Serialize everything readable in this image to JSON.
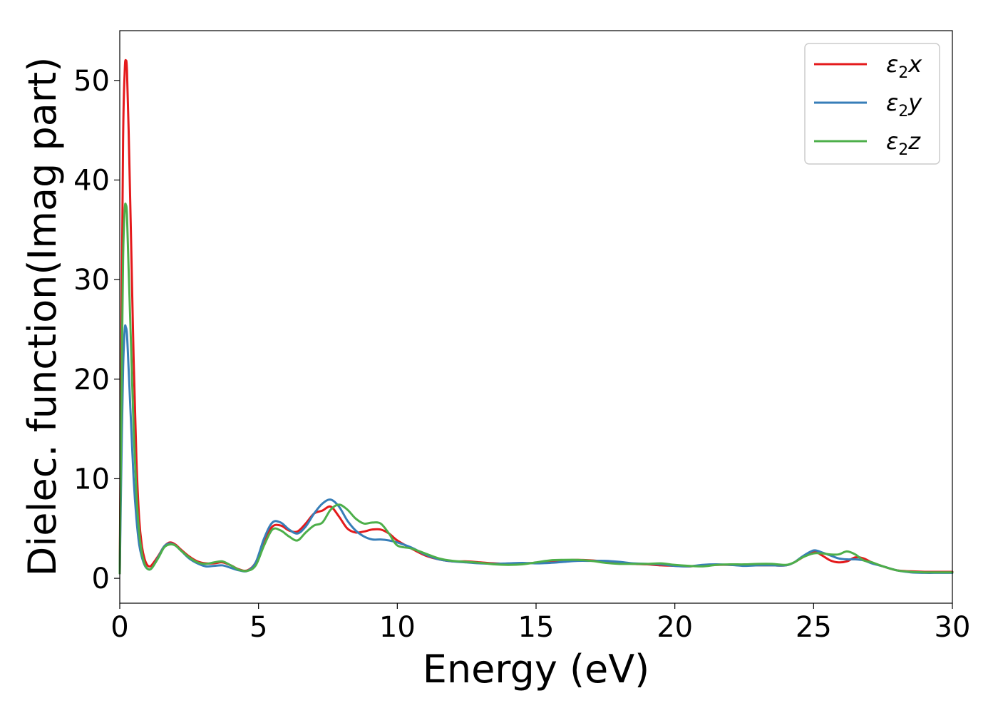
{
  "chart_data": {
    "type": "line",
    "title": "",
    "xlabel": "Energy (eV)",
    "ylabel": "Dielec. function(Imag part)",
    "xlim": [
      0,
      30
    ],
    "ylim": [
      -2.5,
      55
    ],
    "xticks": [
      0,
      5,
      10,
      15,
      20,
      25,
      30
    ],
    "yticks": [
      0,
      10,
      20,
      30,
      40,
      50
    ],
    "grid": false,
    "legend_position": "top-right",
    "series": [
      {
        "name": "ε2x",
        "legend_base": "ε",
        "legend_sub": "2",
        "legend_var": "x",
        "color": "#e41a1c",
        "x": [
          0,
          0.05,
          0.12,
          0.18,
          0.22,
          0.26,
          0.32,
          0.4,
          0.5,
          0.6,
          0.7,
          0.8,
          0.9,
          1.0,
          1.1,
          1.2,
          1.4,
          1.6,
          1.8,
          2.0,
          2.2,
          2.5,
          2.8,
          3.1,
          3.4,
          3.7,
          4.0,
          4.3,
          4.6,
          4.9,
          5.2,
          5.5,
          5.8,
          6.1,
          6.4,
          6.7,
          7.0,
          7.3,
          7.6,
          7.9,
          8.2,
          8.5,
          8.8,
          9.1,
          9.4,
          9.7,
          10.0,
          10.5,
          11,
          11.5,
          12,
          12.5,
          13,
          13.5,
          14,
          14.5,
          15,
          15.5,
          16,
          16.5,
          17,
          17.5,
          18,
          18.5,
          19,
          19.5,
          20,
          20.5,
          21,
          21.5,
          22,
          22.5,
          23,
          23.5,
          24,
          24.3,
          24.6,
          25.0,
          25.3,
          25.6,
          25.9,
          26.2,
          26.5,
          26.8,
          27.1,
          27.5,
          28,
          28.5,
          29,
          29.5,
          30
        ],
        "y": [
          0.5,
          20,
          44,
          51,
          52,
          51,
          45,
          35,
          22,
          12,
          6,
          3.2,
          1.9,
          1.3,
          1.2,
          1.5,
          2.3,
          3.2,
          3.6,
          3.4,
          2.9,
          2.2,
          1.7,
          1.5,
          1.5,
          1.6,
          1.3,
          0.9,
          0.8,
          1.6,
          3.8,
          5.2,
          5.3,
          4.8,
          4.7,
          5.5,
          6.5,
          6.8,
          7.2,
          6.2,
          5.0,
          4.6,
          4.7,
          4.9,
          4.9,
          4.5,
          3.8,
          3.0,
          2.3,
          1.9,
          1.7,
          1.7,
          1.6,
          1.5,
          1.45,
          1.5,
          1.55,
          1.7,
          1.8,
          1.85,
          1.8,
          1.7,
          1.6,
          1.45,
          1.4,
          1.3,
          1.25,
          1.2,
          1.3,
          1.35,
          1.35,
          1.3,
          1.3,
          1.3,
          1.3,
          1.6,
          2.1,
          2.7,
          2.3,
          1.8,
          1.6,
          1.7,
          2.1,
          2.0,
          1.6,
          1.2,
          0.8,
          0.7,
          0.65,
          0.65,
          0.65
        ]
      },
      {
        "name": "ε2y",
        "legend_base": "ε",
        "legend_sub": "2",
        "legend_var": "y",
        "color": "#377eb8",
        "x": [
          0,
          0.05,
          0.12,
          0.18,
          0.22,
          0.26,
          0.32,
          0.4,
          0.5,
          0.6,
          0.7,
          0.8,
          0.9,
          1.0,
          1.1,
          1.2,
          1.4,
          1.6,
          1.8,
          2.0,
          2.2,
          2.5,
          2.8,
          3.1,
          3.4,
          3.7,
          4.0,
          4.3,
          4.6,
          4.9,
          5.2,
          5.5,
          5.8,
          6.1,
          6.4,
          6.7,
          7.0,
          7.3,
          7.6,
          7.9,
          8.2,
          8.5,
          8.8,
          9.1,
          9.4,
          9.7,
          10.0,
          10.5,
          11,
          11.5,
          12,
          12.5,
          13,
          13.5,
          14,
          14.5,
          15,
          15.5,
          16,
          16.5,
          17,
          17.5,
          18,
          18.5,
          19,
          19.5,
          20,
          20.5,
          21,
          21.5,
          22,
          22.5,
          23,
          23.5,
          24,
          24.3,
          24.6,
          25.0,
          25.3,
          25.6,
          25.9,
          26.2,
          26.5,
          26.8,
          27.1,
          27.5,
          28,
          28.5,
          29,
          29.5,
          30
        ],
        "y": [
          0.5,
          10,
          21,
          25,
          25.2,
          24.5,
          21,
          16,
          10,
          6,
          3.4,
          2.1,
          1.3,
          0.95,
          0.9,
          1.2,
          2.2,
          3.2,
          3.5,
          3.3,
          2.8,
          2.0,
          1.5,
          1.2,
          1.25,
          1.3,
          1.05,
          0.8,
          0.75,
          1.6,
          4.0,
          5.6,
          5.6,
          4.9,
          4.5,
          5.2,
          6.5,
          7.5,
          7.9,
          7.2,
          5.8,
          4.8,
          4.2,
          3.9,
          3.9,
          3.8,
          3.6,
          3.1,
          2.4,
          1.9,
          1.7,
          1.6,
          1.5,
          1.45,
          1.5,
          1.55,
          1.5,
          1.55,
          1.65,
          1.75,
          1.75,
          1.75,
          1.65,
          1.5,
          1.45,
          1.4,
          1.25,
          1.2,
          1.35,
          1.4,
          1.35,
          1.25,
          1.3,
          1.3,
          1.3,
          1.6,
          2.2,
          2.8,
          2.6,
          2.3,
          2.0,
          1.9,
          1.9,
          1.8,
          1.5,
          1.2,
          0.8,
          0.6,
          0.55,
          0.55,
          0.55
        ]
      },
      {
        "name": "ε2z",
        "legend_base": "ε",
        "legend_sub": "2",
        "legend_var": "z",
        "color": "#4daf4a",
        "x": [
          0,
          0.05,
          0.12,
          0.18,
          0.22,
          0.26,
          0.32,
          0.4,
          0.5,
          0.6,
          0.7,
          0.8,
          0.9,
          1.0,
          1.1,
          1.2,
          1.4,
          1.6,
          1.8,
          2.0,
          2.2,
          2.5,
          2.8,
          3.1,
          3.4,
          3.7,
          4.0,
          4.3,
          4.6,
          4.9,
          5.2,
          5.5,
          5.8,
          6.1,
          6.4,
          6.7,
          7.0,
          7.3,
          7.6,
          7.9,
          8.2,
          8.5,
          8.8,
          9.1,
          9.4,
          9.7,
          10.0,
          10.5,
          11,
          11.5,
          12,
          12.5,
          13,
          13.5,
          14,
          14.5,
          15,
          15.5,
          16,
          16.5,
          17,
          17.5,
          18,
          18.5,
          19,
          19.5,
          20,
          20.5,
          21,
          21.5,
          22,
          22.5,
          23,
          23.5,
          24,
          24.3,
          24.6,
          25.0,
          25.3,
          25.6,
          25.9,
          26.2,
          26.5,
          26.8,
          27.1,
          27.5,
          28,
          28.5,
          29,
          29.5,
          30
        ],
        "y": [
          0.5,
          15,
          32,
          37,
          37.5,
          36.5,
          31,
          24,
          15,
          8.5,
          4.6,
          2.5,
          1.4,
          0.95,
          0.9,
          1.2,
          2.1,
          3.1,
          3.4,
          3.3,
          2.8,
          2.1,
          1.6,
          1.45,
          1.6,
          1.7,
          1.3,
          0.85,
          0.75,
          1.3,
          3.3,
          4.9,
          4.8,
          4.2,
          3.8,
          4.6,
          5.3,
          5.6,
          6.9,
          7.4,
          6.9,
          6.0,
          5.5,
          5.6,
          5.5,
          4.5,
          3.3,
          3.0,
          2.5,
          2.0,
          1.75,
          1.65,
          1.55,
          1.4,
          1.35,
          1.4,
          1.6,
          1.8,
          1.85,
          1.85,
          1.75,
          1.55,
          1.45,
          1.45,
          1.45,
          1.5,
          1.35,
          1.25,
          1.2,
          1.35,
          1.4,
          1.4,
          1.45,
          1.45,
          1.35,
          1.6,
          2.1,
          2.5,
          2.5,
          2.4,
          2.4,
          2.7,
          2.4,
          1.8,
          1.6,
          1.2,
          0.8,
          0.65,
          0.6,
          0.6,
          0.6
        ]
      }
    ]
  }
}
